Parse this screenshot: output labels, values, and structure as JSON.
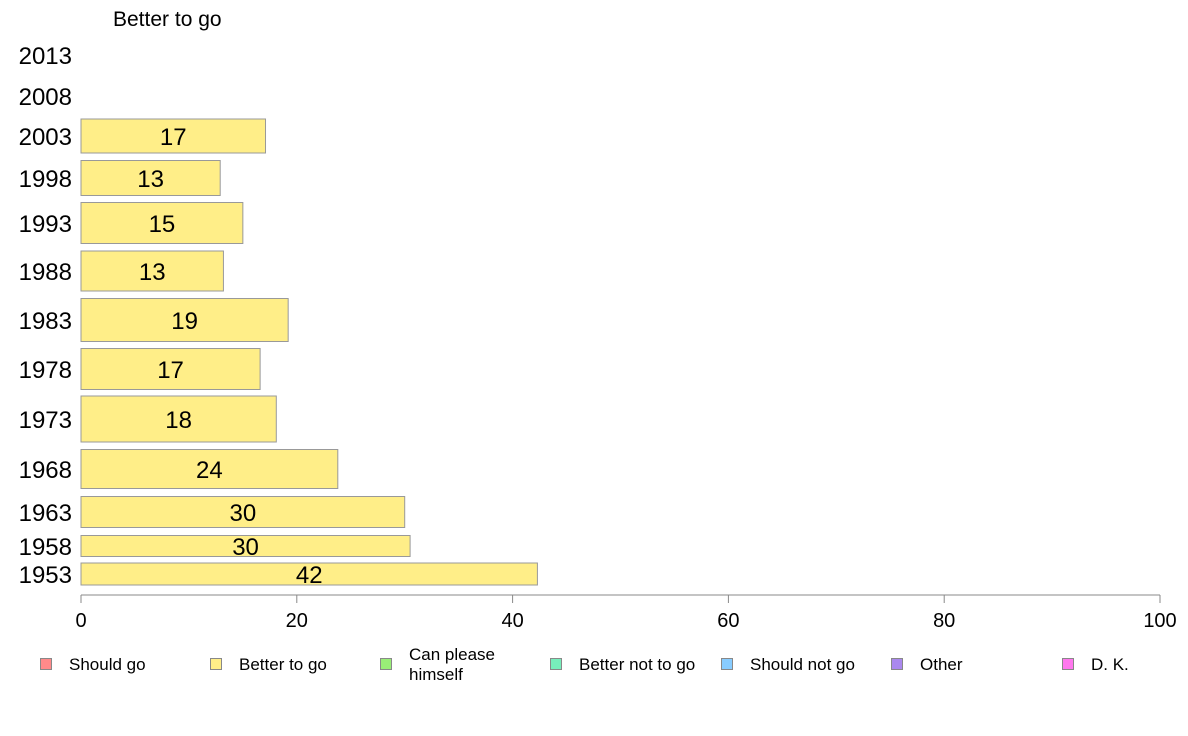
{
  "chart_data": {
    "type": "bar",
    "orientation": "horizontal",
    "title": "Better to go",
    "categories": [
      "2013",
      "2008",
      "2003",
      "1998",
      "1993",
      "1988",
      "1983",
      "1978",
      "1973",
      "1968",
      "1963",
      "1958",
      "1953"
    ],
    "values": [
      null,
      null,
      17,
      13,
      15,
      13,
      19,
      17,
      18,
      24,
      30,
      30,
      42
    ],
    "raw_values": [
      null,
      null,
      17.1,
      12.9,
      15.0,
      13.2,
      19.2,
      16.6,
      18.1,
      23.8,
      30.0,
      30.5,
      42.3
    ],
    "data_labels": [
      "",
      "",
      "17",
      "13",
      "15",
      "13",
      "19",
      "17",
      "18",
      "24",
      "30",
      "30",
      "42"
    ],
    "xlim": [
      0,
      100
    ],
    "x_ticks": [
      "0",
      "20",
      "40",
      "60",
      "80",
      "100"
    ],
    "grid": false,
    "bar_color": "#ffee88",
    "legend_position": "bottom",
    "legend": [
      {
        "label": "Should go",
        "color": "#ff8a8a"
      },
      {
        "label": "Better to go",
        "color": "#ffee88"
      },
      {
        "label": "Can please himself",
        "color": "#99ee77"
      },
      {
        "label": "Better not to go",
        "color": "#77eebb"
      },
      {
        "label": "Should not go",
        "color": "#88ccff"
      },
      {
        "label": "Other",
        "color": "#aa88ee"
      },
      {
        "label": "D. K.",
        "color": "#ff77ee"
      }
    ]
  }
}
